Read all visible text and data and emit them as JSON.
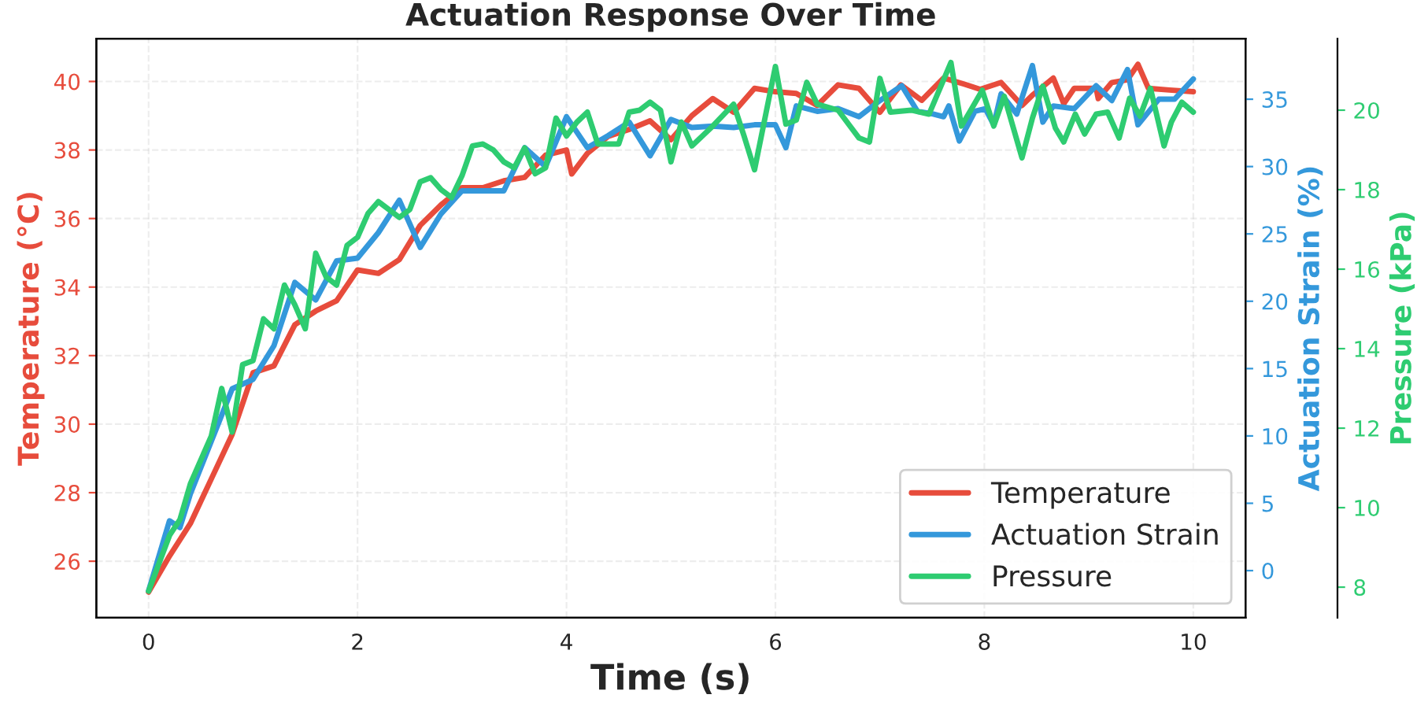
{
  "chart_data": {
    "type": "line",
    "title": "Actuation Response Over Time",
    "xlabel": "Time (s)",
    "ylabel": "Temperature (°C)",
    "y2label": "Actuation Strain (%)",
    "y3label": "Pressure (kPa)",
    "xlim": [
      -0.5,
      10.5
    ],
    "xticks": [
      0,
      2,
      4,
      6,
      8,
      10
    ],
    "ylim": [
      24.35,
      41.25
    ],
    "yticks": [
      26,
      28,
      30,
      32,
      34,
      36,
      38,
      40
    ],
    "y2lim": [
      -3.5,
      39.5
    ],
    "y2ticks": [
      0,
      5,
      10,
      15,
      20,
      25,
      30,
      35
    ],
    "y3lim": [
      7.23,
      21.8
    ],
    "y3ticks": [
      8,
      10,
      12,
      14,
      16,
      18,
      20
    ],
    "grid": true,
    "legend": "bottom right",
    "line_style": "solid",
    "series": [
      {
        "name": "Temperature",
        "color": "#e74c3c",
        "x": [
          0,
          0.2,
          0.4,
          0.6,
          0.8,
          1.0,
          1.2,
          1.4,
          1.6,
          1.8,
          2.0,
          2.2,
          2.4,
          2.6,
          2.8,
          3.0,
          3.2,
          3.4,
          3.6,
          3.8,
          4.0,
          4.05,
          4.2,
          4.4,
          4.6,
          4.8,
          5.0,
          5.2,
          5.4,
          5.6,
          5.8,
          6.0,
          6.2,
          6.4,
          6.6,
          6.8,
          7.0,
          7.2,
          7.4,
          7.61,
          7.81,
          7.96,
          8.16,
          8.36,
          8.46,
          8.66,
          8.76,
          8.86,
          9.07,
          9.09,
          9.22,
          9.37,
          9.47,
          9.57,
          9.77,
          10
        ],
        "values": [
          25.1,
          26.15,
          27.1,
          28.4,
          29.7,
          31.5,
          31.7,
          32.9,
          33.3,
          33.6,
          34.5,
          34.4,
          34.8,
          35.8,
          36.4,
          36.9,
          36.9,
          37.1,
          37.2,
          37.85,
          38.0,
          37.3,
          37.9,
          38.4,
          38.6,
          38.85,
          38.3,
          39.0,
          39.5,
          39.1,
          39.8,
          39.7,
          39.65,
          39.3,
          39.9,
          39.8,
          39.1,
          39.9,
          39.45,
          40.1,
          39.92,
          39.77,
          39.97,
          39.3,
          39.6,
          40.1,
          39.35,
          39.8,
          39.8,
          39.5,
          39.97,
          40.05,
          40.5,
          39.8,
          39.75,
          39.7
        ]
      },
      {
        "name": "Actuation Strain",
        "color": "#3498db",
        "axis": "y2",
        "x": [
          0,
          0.2,
          0.3,
          0.4,
          0.6,
          0.8,
          1.0,
          1.2,
          1.4,
          1.6,
          1.8,
          2.0,
          2.2,
          2.4,
          2.6,
          2.8,
          3.0,
          3.2,
          3.4,
          3.6,
          3.8,
          4.0,
          4.2,
          4.4,
          4.6,
          4.8,
          5.0,
          5.2,
          5.4,
          5.6,
          5.8,
          6.0,
          6.1,
          6.2,
          6.4,
          6.6,
          6.8,
          7.0,
          7.21,
          7.36,
          7.51,
          7.61,
          7.66,
          7.76,
          7.91,
          8.01,
          8.09,
          8.16,
          8.31,
          8.46,
          8.56,
          8.66,
          8.86,
          9.07,
          9.22,
          9.37,
          9.47,
          9.67,
          9.82,
          10
        ],
        "values": [
          -1.5,
          3.7,
          3.2,
          5.7,
          9.6,
          13.5,
          14.2,
          16.7,
          21.4,
          20.1,
          23.0,
          23.2,
          25.1,
          27.5,
          24.0,
          26.5,
          28.2,
          28.2,
          28.2,
          31.4,
          30.0,
          33.7,
          31.4,
          32.3,
          33.3,
          30.8,
          33.5,
          32.9,
          33.0,
          32.9,
          33.1,
          33.1,
          31.4,
          34.5,
          34.1,
          34.3,
          33.7,
          34.9,
          36.0,
          34.1,
          33.9,
          33.7,
          34.5,
          31.9,
          34.1,
          34.3,
          33.1,
          35.4,
          33.9,
          37.5,
          33.3,
          34.5,
          34.3,
          36.0,
          34.9,
          37.2,
          33.1,
          35.0,
          35.0,
          36.5
        ]
      },
      {
        "name": "Pressure",
        "color": "#2ecc71",
        "axis": "y3",
        "x": [
          0,
          0.2,
          0.3,
          0.4,
          0.6,
          0.7,
          0.8,
          0.9,
          1.0,
          1.1,
          1.2,
          1.3,
          1.4,
          1.5,
          1.6,
          1.7,
          1.8,
          1.9,
          2.0,
          2.1,
          2.2,
          2.4,
          2.5,
          2.6,
          2.7,
          2.8,
          2.9,
          3.0,
          3.1,
          3.2,
          3.3,
          3.4,
          3.5,
          3.6,
          3.7,
          3.8,
          3.9,
          4.0,
          4.1,
          4.2,
          4.3,
          4.4,
          4.5,
          4.6,
          4.7,
          4.8,
          4.9,
          5.0,
          5.1,
          5.2,
          5.4,
          5.6,
          5.7,
          5.8,
          6.0,
          6.1,
          6.2,
          6.3,
          6.4,
          6.6,
          6.8,
          6.9,
          7.0,
          7.1,
          7.3,
          7.47,
          7.68,
          7.78,
          7.87,
          7.98,
          8.09,
          8.19,
          8.36,
          8.46,
          8.56,
          8.68,
          8.76,
          8.87,
          8.96,
          9.07,
          9.18,
          9.29,
          9.39,
          9.49,
          9.59,
          9.72,
          9.79,
          9.89,
          10
        ],
        "values": [
          7.9,
          9.3,
          9.7,
          10.6,
          11.8,
          13.0,
          11.9,
          13.6,
          13.7,
          14.75,
          14.5,
          15.6,
          15.1,
          14.5,
          16.4,
          15.8,
          15.6,
          16.6,
          16.8,
          17.4,
          17.7,
          17.3,
          17.5,
          18.2,
          18.3,
          18.0,
          17.8,
          18.35,
          19.1,
          19.15,
          19.0,
          18.7,
          18.55,
          19.05,
          18.4,
          18.55,
          19.8,
          19.35,
          19.7,
          19.95,
          19.15,
          19.15,
          19.15,
          19.95,
          20.0,
          20.2,
          20.0,
          18.7,
          19.7,
          19.1,
          19.6,
          20.15,
          19.35,
          18.5,
          21.1,
          19.65,
          19.75,
          20.7,
          20.15,
          20.0,
          19.3,
          19.2,
          20.8,
          19.95,
          20.0,
          19.9,
          21.2,
          19.6,
          20.0,
          20.5,
          19.6,
          20.35,
          18.8,
          19.8,
          20.6,
          19.55,
          19.2,
          19.9,
          19.4,
          19.9,
          19.95,
          19.3,
          20.3,
          19.85,
          20.55,
          19.1,
          19.7,
          20.2,
          19.95
        ]
      }
    ]
  }
}
